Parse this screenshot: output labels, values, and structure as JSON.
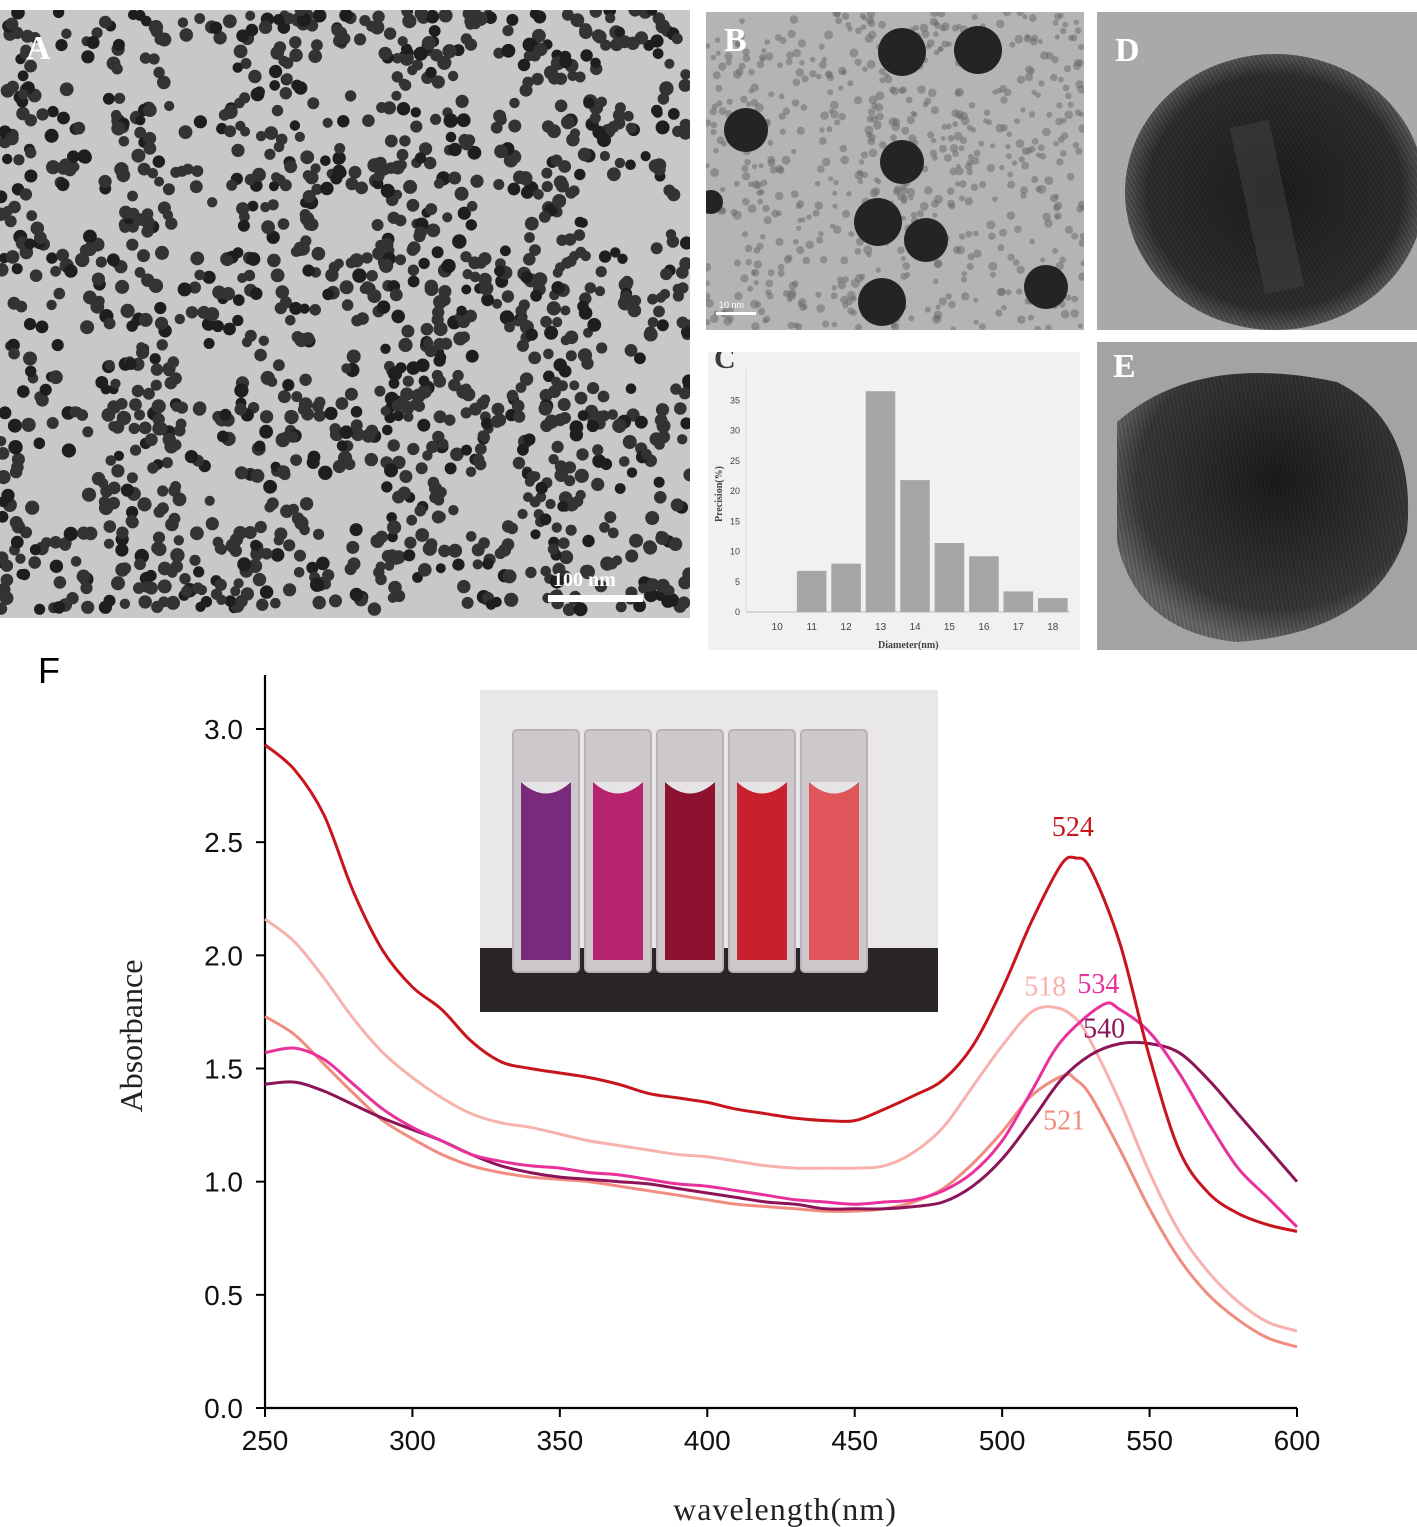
{
  "panels": {
    "A": {
      "label": "A",
      "scalebar": "100 nm"
    },
    "B": {
      "label": "B",
      "scalebar": "10 nm"
    },
    "C": {
      "label": "C"
    },
    "D": {
      "label": "D"
    },
    "E": {
      "label": "E"
    },
    "F": {
      "label": "F"
    }
  },
  "colors": {
    "c524": "#c8151c",
    "c518": "#f7b2ae",
    "c521": "#f08c80",
    "c534": "#e9319c",
    "c540": "#8c1457"
  },
  "chart_data": [
    {
      "type": "bar",
      "panel": "C",
      "title": "",
      "xlabel": "Diameter(nm)",
      "ylabel": "Precision(%)",
      "categories": [
        "10",
        "11",
        "12",
        "13",
        "14",
        "15",
        "16",
        "17",
        "18"
      ],
      "values": [
        0,
        6.8,
        8.0,
        36.5,
        21.8,
        11.4,
        9.2,
        3.4,
        2.3
      ],
      "ylim": [
        0,
        40
      ],
      "yticks": [
        0,
        5,
        10,
        15,
        20,
        25,
        30,
        35
      ],
      "bar_color": "#a6a6a6"
    },
    {
      "type": "line",
      "panel": "F",
      "xlabel": "wavelength(nm)",
      "ylabel": "Absorbance",
      "xlim": [
        250,
        600
      ],
      "ylim": [
        0,
        3.25
      ],
      "xticks": [
        250,
        300,
        350,
        400,
        450,
        500,
        550,
        600
      ],
      "yticks": [
        "0.0",
        "0.5",
        "1.0",
        "1.5",
        "2.0",
        "2.5",
        "3.0"
      ],
      "series": [
        {
          "name": "524",
          "color": "#c8151c",
          "peak_x": 524,
          "peak_y": 2.43,
          "x": [
            250,
            260,
            270,
            280,
            290,
            300,
            310,
            320,
            330,
            340,
            350,
            360,
            370,
            380,
            390,
            400,
            410,
            420,
            430,
            440,
            450,
            460,
            470,
            480,
            490,
            500,
            510,
            520,
            525,
            530,
            540,
            550,
            560,
            570,
            580,
            590,
            600
          ],
          "y": [
            2.93,
            2.82,
            2.62,
            2.28,
            2.02,
            1.86,
            1.76,
            1.62,
            1.53,
            1.5,
            1.48,
            1.46,
            1.43,
            1.39,
            1.37,
            1.35,
            1.32,
            1.3,
            1.28,
            1.27,
            1.27,
            1.32,
            1.38,
            1.45,
            1.6,
            1.85,
            2.15,
            2.4,
            2.43,
            2.38,
            2.05,
            1.55,
            1.14,
            0.95,
            0.86,
            0.81,
            0.78
          ]
        },
        {
          "name": "518",
          "color": "#f7b2ae",
          "peak_x": 518,
          "peak_y": 1.77,
          "x": [
            250,
            260,
            270,
            280,
            290,
            300,
            310,
            320,
            330,
            340,
            350,
            360,
            370,
            380,
            390,
            400,
            410,
            420,
            430,
            440,
            450,
            460,
            470,
            480,
            490,
            500,
            510,
            518,
            525,
            530,
            540,
            550,
            560,
            570,
            580,
            590,
            600
          ],
          "y": [
            2.16,
            2.06,
            1.9,
            1.72,
            1.57,
            1.46,
            1.37,
            1.3,
            1.26,
            1.24,
            1.21,
            1.18,
            1.16,
            1.14,
            1.12,
            1.11,
            1.09,
            1.07,
            1.06,
            1.06,
            1.06,
            1.07,
            1.13,
            1.24,
            1.42,
            1.6,
            1.75,
            1.77,
            1.72,
            1.62,
            1.35,
            1.04,
            0.78,
            0.6,
            0.47,
            0.38,
            0.34
          ]
        },
        {
          "name": "521",
          "color": "#f08c80",
          "peak_x": 521,
          "peak_y": 1.47,
          "x": [
            250,
            260,
            270,
            280,
            290,
            300,
            310,
            320,
            330,
            340,
            350,
            360,
            370,
            380,
            390,
            400,
            410,
            420,
            430,
            440,
            450,
            460,
            470,
            480,
            490,
            500,
            510,
            521,
            525,
            530,
            540,
            550,
            560,
            570,
            580,
            590,
            600
          ],
          "y": [
            1.73,
            1.65,
            1.52,
            1.39,
            1.27,
            1.19,
            1.12,
            1.07,
            1.04,
            1.02,
            1.01,
            1.0,
            0.98,
            0.96,
            0.94,
            0.92,
            0.9,
            0.89,
            0.88,
            0.87,
            0.87,
            0.88,
            0.91,
            0.97,
            1.08,
            1.22,
            1.38,
            1.47,
            1.45,
            1.38,
            1.14,
            0.88,
            0.66,
            0.5,
            0.39,
            0.31,
            0.27
          ]
        },
        {
          "name": "534",
          "color": "#e9319c",
          "peak_x": 534,
          "peak_y": 1.78,
          "x": [
            250,
            260,
            270,
            280,
            290,
            300,
            310,
            320,
            330,
            340,
            350,
            360,
            370,
            380,
            390,
            400,
            410,
            420,
            430,
            440,
            450,
            460,
            470,
            480,
            490,
            500,
            510,
            520,
            534,
            540,
            550,
            560,
            570,
            580,
            590,
            600
          ],
          "y": [
            1.57,
            1.59,
            1.54,
            1.43,
            1.32,
            1.24,
            1.18,
            1.12,
            1.09,
            1.07,
            1.06,
            1.04,
            1.03,
            1.01,
            0.99,
            0.98,
            0.96,
            0.94,
            0.92,
            0.91,
            0.9,
            0.91,
            0.92,
            0.96,
            1.04,
            1.18,
            1.4,
            1.62,
            1.78,
            1.76,
            1.66,
            1.48,
            1.26,
            1.06,
            0.93,
            0.8
          ]
        },
        {
          "name": "540",
          "color": "#8c1457",
          "peak_x": 540,
          "peak_y": 1.61,
          "x": [
            250,
            260,
            270,
            280,
            290,
            300,
            310,
            320,
            330,
            340,
            350,
            360,
            370,
            380,
            390,
            400,
            410,
            420,
            430,
            440,
            450,
            460,
            470,
            480,
            490,
            500,
            510,
            520,
            530,
            540,
            550,
            560,
            570,
            580,
            590,
            600
          ],
          "y": [
            1.43,
            1.44,
            1.4,
            1.34,
            1.28,
            1.23,
            1.18,
            1.12,
            1.07,
            1.04,
            1.02,
            1.01,
            1.0,
            0.99,
            0.97,
            0.95,
            0.93,
            0.91,
            0.9,
            0.88,
            0.88,
            0.88,
            0.89,
            0.91,
            0.98,
            1.1,
            1.27,
            1.45,
            1.56,
            1.61,
            1.61,
            1.57,
            1.45,
            1.3,
            1.15,
            1.0
          ]
        }
      ]
    }
  ]
}
